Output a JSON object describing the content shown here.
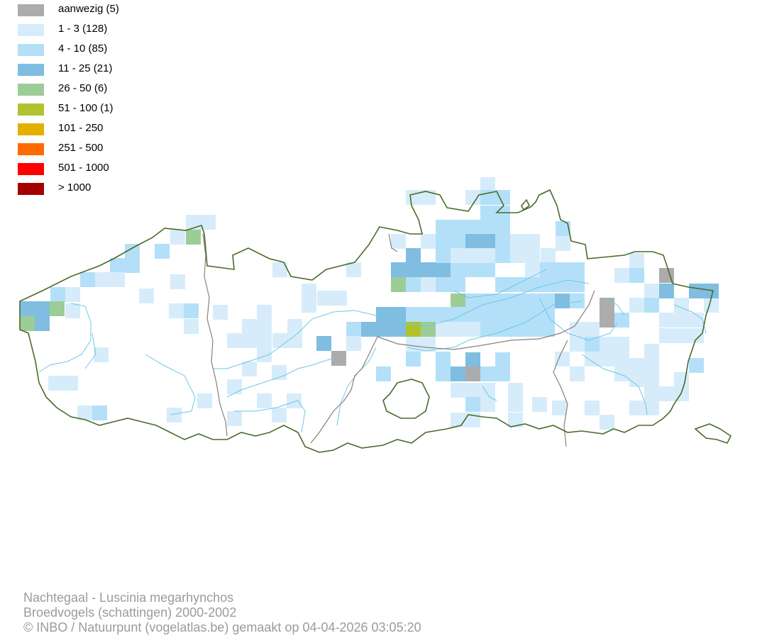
{
  "legend": [
    {
      "label": "aanwezig (5)",
      "color": "#acacac"
    },
    {
      "label": "1 - 3 (128)",
      "color": "#d6ecfa"
    },
    {
      "label": "4 - 10 (85)",
      "color": "#b3e0f8"
    },
    {
      "label": "11 - 25 (21)",
      "color": "#80bde0"
    },
    {
      "label": "26 - 50 (6)",
      "color": "#9ccd96"
    },
    {
      "label": "51 - 100 (1)",
      "color": "#b1c22e"
    },
    {
      "label": "101 - 250",
      "color": "#e3b000"
    },
    {
      "label": "251 - 500",
      "color": "#ff6a00"
    },
    {
      "label": "501 - 1000",
      "color": "#ff0000"
    },
    {
      "label": "> 1000",
      "color": "#a50000"
    }
  ],
  "caption": {
    "line1": "Nachtegaal - Luscinia megarhynchos",
    "line2": "Broedvogels (schattingen) 2000-2002",
    "line3": "© INBO / Natuurpunt (vogelatlas.be) gemaakt op 04-04-2026 03:05:20"
  },
  "map": {
    "border_color": "#4a6b2a",
    "province_border_color": "#8a7f7a",
    "river_color": "#6ec7e6"
  }
}
